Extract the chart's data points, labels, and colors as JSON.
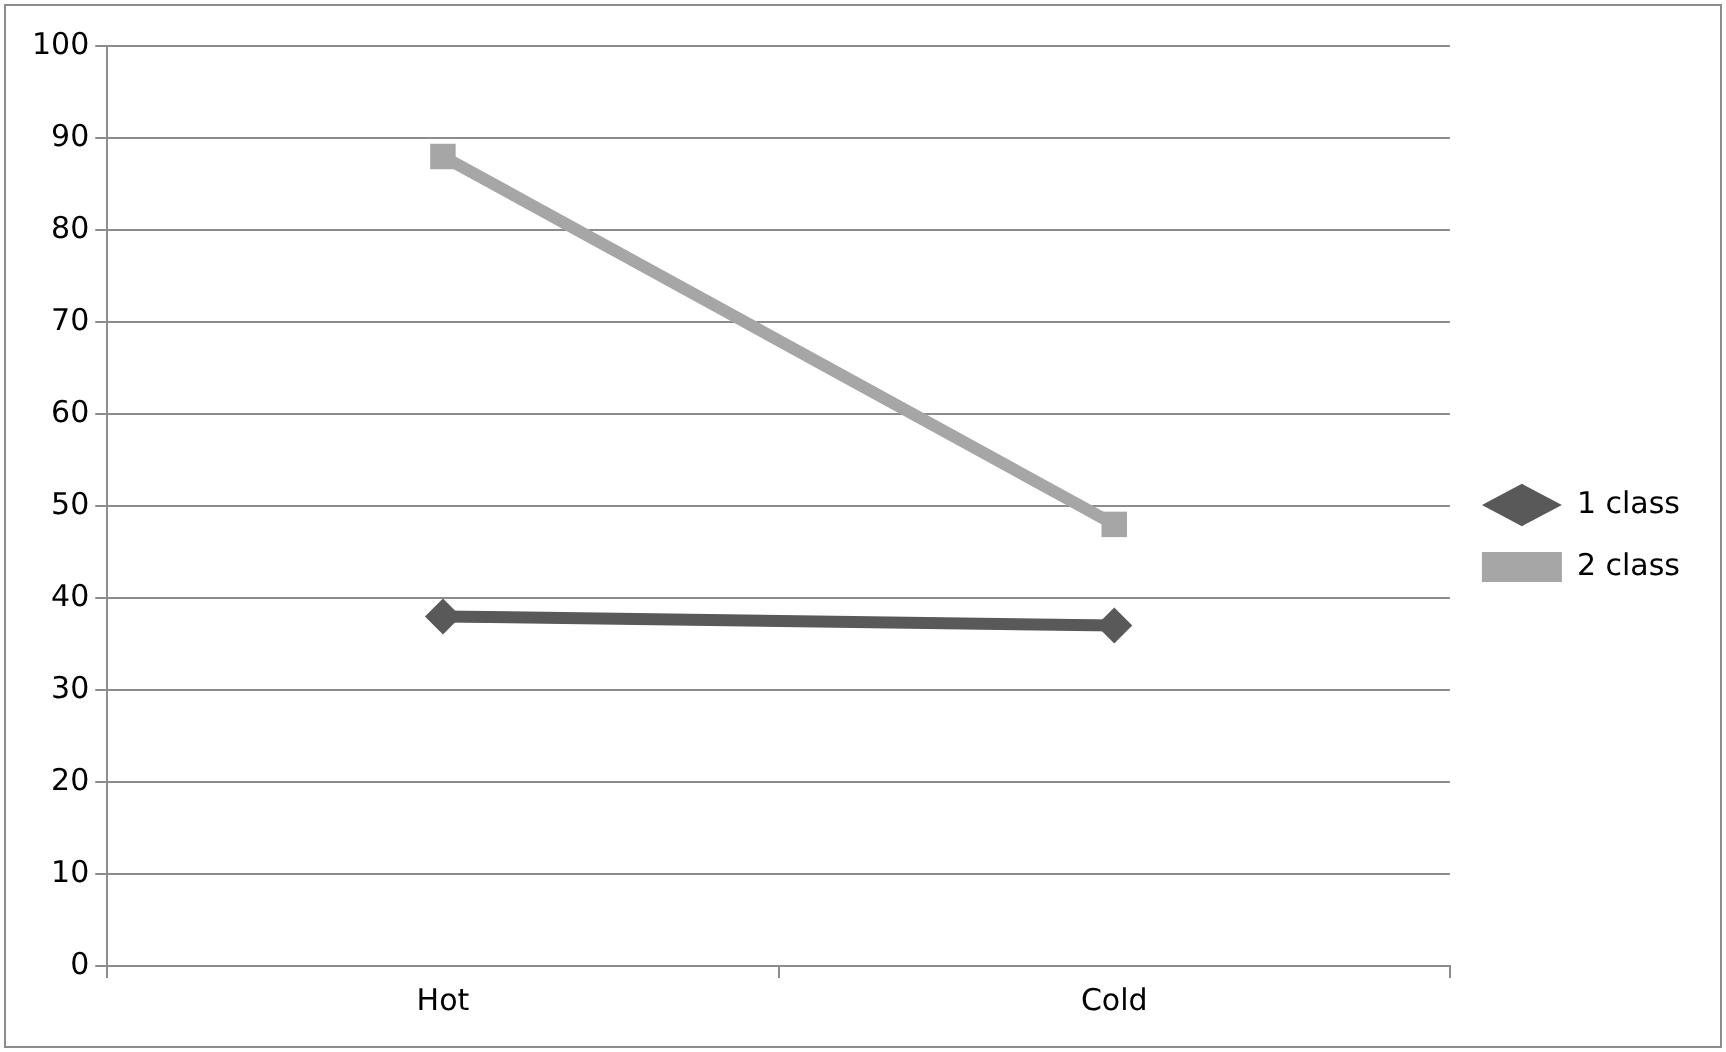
{
  "chart_data": {
    "type": "line",
    "categories": [
      "Hot",
      "Cold"
    ],
    "series": [
      {
        "name": "1 class",
        "color": "#595959",
        "values": [
          38,
          37
        ],
        "marker": "diamond"
      },
      {
        "name": "2 class",
        "color": "#a6a6a6",
        "values": [
          88,
          48
        ],
        "marker": "square"
      }
    ],
    "ylim": [
      0,
      100
    ],
    "yticks": [
      0,
      10,
      20,
      30,
      40,
      50,
      60,
      70,
      80,
      90,
      100
    ],
    "grid": "y",
    "legend": "right",
    "line_style": "solid"
  }
}
